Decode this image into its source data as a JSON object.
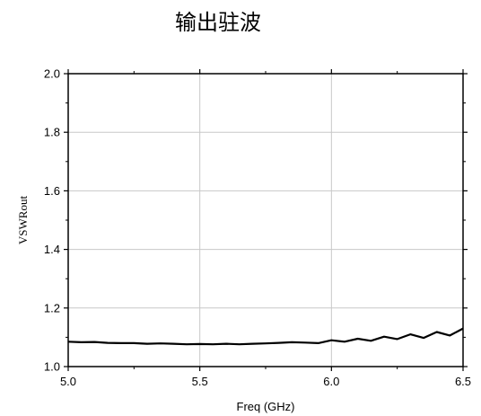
{
  "chart_data": {
    "type": "line",
    "title": "输出驻波",
    "xlabel": "Freq (GHz)",
    "ylabel": "VSWRout",
    "xlim": [
      5.0,
      6.5
    ],
    "ylim": [
      1.0,
      2.0
    ],
    "xticks": [
      5.0,
      5.5,
      6.0,
      6.5
    ],
    "xtick_labels": [
      "5.0",
      "5.5",
      "6.0",
      "6.5"
    ],
    "yticks": [
      1.0,
      1.2,
      1.4,
      1.6,
      1.8,
      2.0
    ],
    "ytick_labels": [
      "1.0",
      "1.2",
      "1.4",
      "1.6",
      "1.8",
      "2.0"
    ],
    "grid": true,
    "series": [
      {
        "color": "#000000",
        "x": [
          5.0,
          5.05,
          5.1,
          5.15,
          5.2,
          5.25,
          5.3,
          5.35,
          5.4,
          5.45,
          5.5,
          5.55,
          5.6,
          5.65,
          5.7,
          5.75,
          5.8,
          5.85,
          5.9,
          5.95,
          6.0,
          6.05,
          6.1,
          6.15,
          6.2,
          6.25,
          6.3,
          6.35,
          6.4,
          6.45,
          6.5
        ],
        "y": [
          1.085,
          1.083,
          1.084,
          1.081,
          1.08,
          1.08,
          1.078,
          1.079,
          1.078,
          1.076,
          1.077,
          1.076,
          1.078,
          1.076,
          1.078,
          1.079,
          1.081,
          1.083,
          1.082,
          1.08,
          1.09,
          1.085,
          1.095,
          1.088,
          1.102,
          1.094,
          1.11,
          1.098,
          1.118,
          1.106,
          1.13
        ]
      }
    ]
  }
}
